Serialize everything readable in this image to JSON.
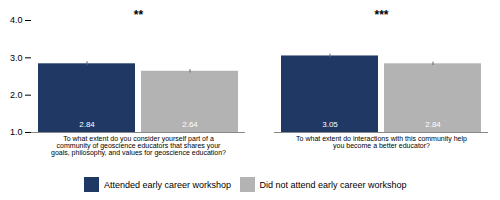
{
  "chart_data": {
    "type": "bar",
    "categories": [
      "To what extent do you consider yourself part of a\ncommunity of geoscience educators that shares your\ngoals, philosophy, and values for geoscience education?",
      "To what extent do interactions with this community help\nyou become a better educator?"
    ],
    "annotations": [
      "**",
      "***"
    ],
    "series": [
      {
        "name": "Attended early career workshop",
        "color": "#1f3864",
        "values": [
          2.84,
          3.05
        ],
        "errors": [
          0.055,
          0.048
        ]
      },
      {
        "name": "Did not attend early career workshop",
        "color": "#b3b3b3",
        "values": [
          2.64,
          2.84
        ],
        "errors": [
          0.045,
          0.045
        ]
      }
    ],
    "ylim": [
      1,
      4
    ],
    "yticks": [
      1,
      2,
      3,
      4
    ],
    "data_labels": true,
    "grid": false,
    "legend": "bottom"
  }
}
